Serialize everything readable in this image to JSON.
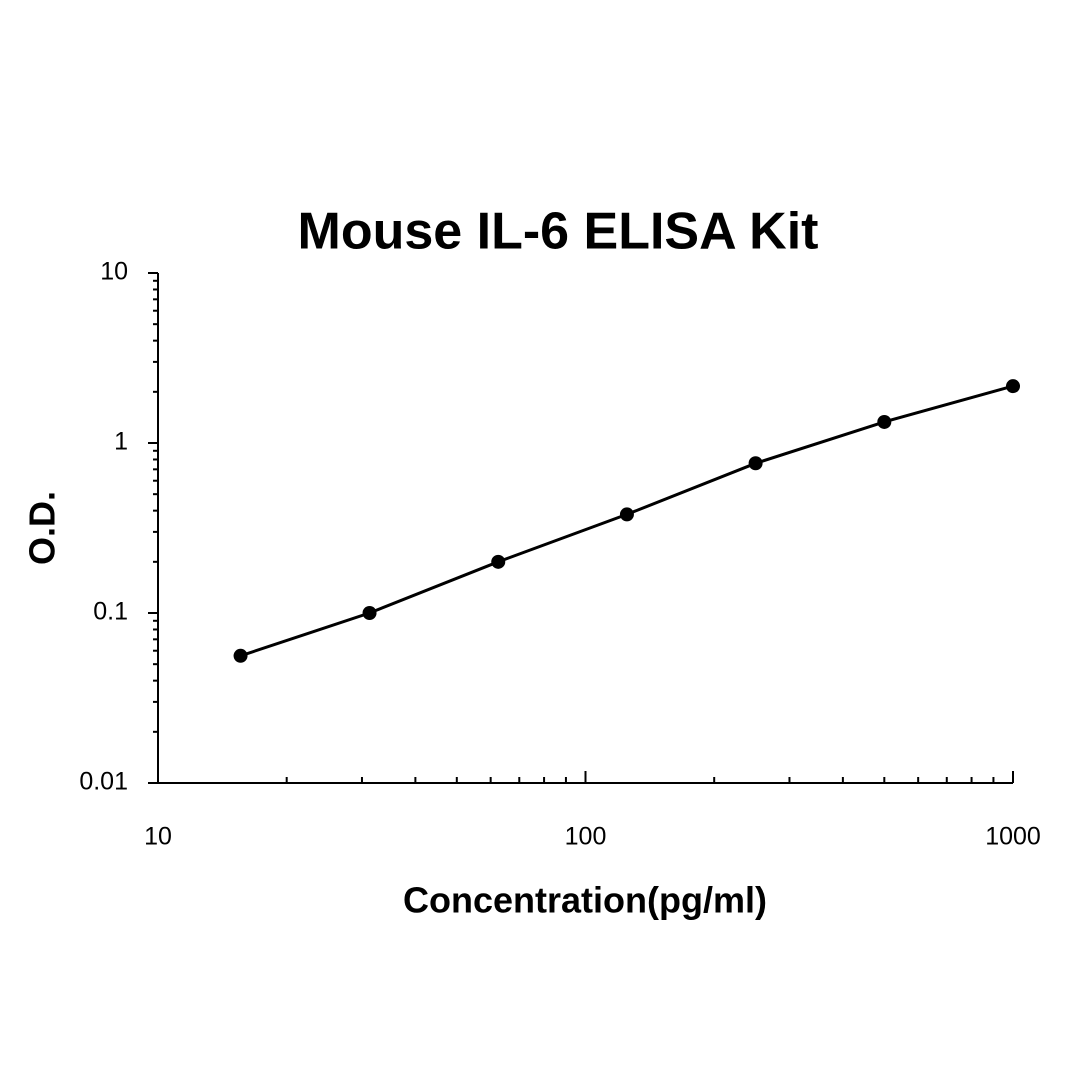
{
  "chart_data": {
    "type": "line",
    "title": "Mouse IL-6 ELISA Kit",
    "x_label": "Concentration(pg/ml)",
    "y_label": "O.D.",
    "log_x": true,
    "log_y": true,
    "grid": false,
    "color": "#000000",
    "markers": true,
    "x": [
      15.6,
      31.25,
      62.5,
      125,
      250,
      500,
      1000
    ],
    "values": [
      0.056,
      0.1,
      0.2,
      0.38,
      0.76,
      1.33,
      2.16
    ],
    "xlim": [
      10,
      1000
    ],
    "ylim": [
      0.01,
      10
    ],
    "xticks": [
      10,
      100,
      1000
    ],
    "yticks": [
      0.01,
      0.1,
      1,
      10
    ],
    "xminorticks": [
      20,
      30,
      40,
      50,
      60,
      70,
      80,
      90,
      200,
      300,
      400,
      500,
      600,
      700,
      800,
      900
    ],
    "yminorticks": [
      0.02,
      0.03,
      0.04,
      0.05,
      0.06,
      0.07,
      0.08,
      0.09,
      0.2,
      0.3,
      0.4,
      0.5,
      0.6,
      0.7,
      0.8,
      0.9,
      2,
      3,
      4,
      5,
      6,
      7,
      8,
      9
    ]
  }
}
